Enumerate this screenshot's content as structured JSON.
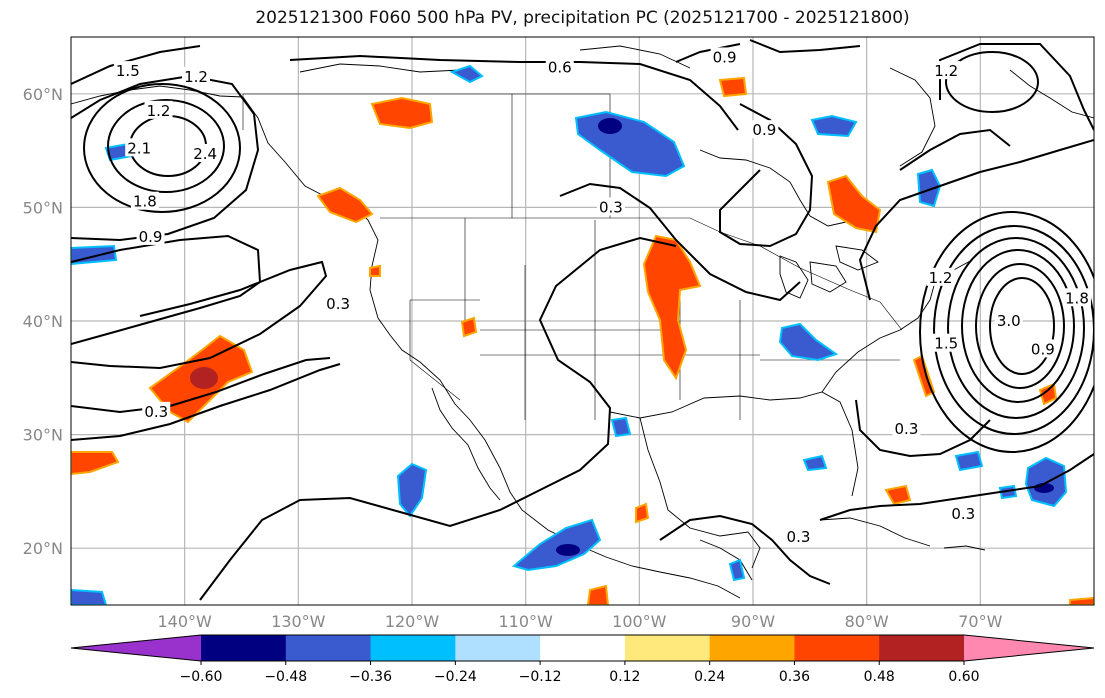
{
  "title": "2025121300 F060 500 hPa PV, precipitation PC (2025121700 - 2025121800)",
  "map": {
    "extent": {
      "lon_min": -150,
      "lon_max": -60,
      "lat_min": 15,
      "lat_max": 65
    },
    "lat_ticks": [
      {
        "value": 60,
        "label": "60°N"
      },
      {
        "value": 50,
        "label": "50°N"
      },
      {
        "value": 40,
        "label": "40°N"
      },
      {
        "value": 30,
        "label": "30°N"
      },
      {
        "value": 20,
        "label": "20°N"
      }
    ],
    "lon_ticks": [
      {
        "value": -140,
        "label": "140°W"
      },
      {
        "value": -130,
        "label": "130°W"
      },
      {
        "value": -120,
        "label": "120°W"
      },
      {
        "value": -110,
        "label": "110°W"
      },
      {
        "value": -100,
        "label": "100°W"
      },
      {
        "value": -90,
        "label": "90°W"
      },
      {
        "value": -80,
        "label": "80°W"
      },
      {
        "value": -70,
        "label": "70°W"
      }
    ],
    "pv_contour_labels": [
      {
        "text": "1.5",
        "lon": -145.0,
        "lat": 62.0
      },
      {
        "text": "1.2",
        "lon": -139.0,
        "lat": 61.5
      },
      {
        "text": "1.2",
        "lon": -142.3,
        "lat": 58.5
      },
      {
        "text": "2.1",
        "lon": -144.0,
        "lat": 55.2
      },
      {
        "text": "2.4",
        "lon": -138.2,
        "lat": 54.7
      },
      {
        "text": "1.8",
        "lon": -143.5,
        "lat": 50.5
      },
      {
        "text": "0.9",
        "lon": -143.0,
        "lat": 47.4
      },
      {
        "text": "0.3",
        "lon": -126.5,
        "lat": 41.5
      },
      {
        "text": "0.3",
        "lon": -142.5,
        "lat": 32.0
      },
      {
        "text": "0.6",
        "lon": -107.0,
        "lat": 62.3
      },
      {
        "text": "0.9",
        "lon": -92.5,
        "lat": 63.2
      },
      {
        "text": "0.9",
        "lon": -89.0,
        "lat": 56.8
      },
      {
        "text": "0.3",
        "lon": -102.5,
        "lat": 50.0
      },
      {
        "text": "1.2",
        "lon": -73.0,
        "lat": 62.0
      },
      {
        "text": "1.2",
        "lon": -73.5,
        "lat": 43.8
      },
      {
        "text": "1.5",
        "lon": -73.0,
        "lat": 38.0
      },
      {
        "text": "3.0",
        "lon": -67.5,
        "lat": 40.0
      },
      {
        "text": "0.9",
        "lon": -64.5,
        "lat": 37.5
      },
      {
        "text": "1.8",
        "lon": -61.5,
        "lat": 42.0
      },
      {
        "text": "0.3",
        "lon": -76.5,
        "lat": 30.5
      },
      {
        "text": "0.3",
        "lon": -86.0,
        "lat": 21.0
      },
      {
        "text": "0.3",
        "lon": -71.5,
        "lat": 23.0
      }
    ],
    "pc_features": [
      {
        "name": "pc-alaska-panhandle-positive",
        "lon": -117.5,
        "lat": 59.2,
        "value": 0.38
      },
      {
        "name": "pc-bc-coast-positive",
        "lon": -125.0,
        "lat": 51.3,
        "value": 0.3
      },
      {
        "name": "pc-pacific-subtropical-positive",
        "lon": -136.5,
        "lat": 35.5,
        "value": 0.45
      },
      {
        "name": "pc-plains-positive",
        "lon": -97.5,
        "lat": 41.0,
        "value": 0.4
      },
      {
        "name": "pc-quebec-positive",
        "lon": -78.5,
        "lat": 51.0,
        "value": 0.38
      },
      {
        "name": "pc-hudson-bay-negative",
        "lon": -102.0,
        "lat": 55.0,
        "value": -0.5
      },
      {
        "name": "pc-ohio-valley-negative",
        "lon": -87.0,
        "lat": 38.0,
        "value": -0.42
      },
      {
        "name": "pc-baja-negative",
        "lon": -120.0,
        "lat": 24.0,
        "value": -0.38
      },
      {
        "name": "pc-mexico-negative",
        "lon": -103.5,
        "lat": 20.0,
        "value": -0.5
      },
      {
        "name": "pc-atlantic-negative",
        "lon": -64.5,
        "lat": 25.0,
        "value": -0.5
      }
    ]
  },
  "colorbar": {
    "labels": [
      "−0.60",
      "−0.48",
      "−0.36",
      "−0.24",
      "−0.12",
      "0.12",
      "0.24",
      "0.36",
      "0.48",
      "0.60"
    ],
    "colors": [
      "#9932cc",
      "#000080",
      "#3a5ad0",
      "#00bfff",
      "#b0e0ff",
      "#ffffff",
      "#ffe87c",
      "#ffa500",
      "#ff4500",
      "#b22222",
      "#ff88b0"
    ]
  },
  "palette": {
    "contour": "#000000",
    "grid": "#b8b8b8",
    "tick_label": "#888888"
  }
}
